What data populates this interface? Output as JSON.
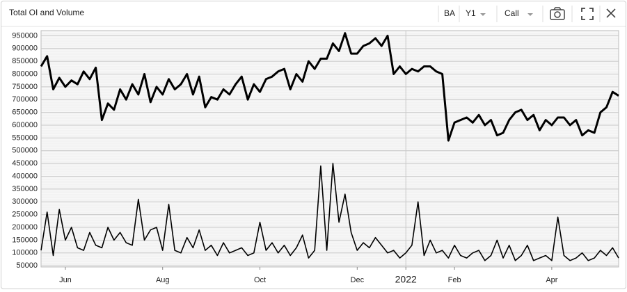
{
  "toolbar": {
    "symbol": "BA",
    "period": "Y1",
    "option_type": "Call"
  },
  "chart_data": {
    "type": "line",
    "title": "Total OI and Volume",
    "categories": [
      null,
      null,
      null,
      null,
      "Jun",
      null,
      null,
      null,
      null,
      null,
      null,
      null,
      null,
      null,
      null,
      null,
      null,
      null,
      null,
      null,
      "Aug",
      null,
      null,
      null,
      null,
      null,
      null,
      null,
      null,
      null,
      null,
      null,
      null,
      null,
      null,
      null,
      "Oct",
      null,
      null,
      null,
      null,
      null,
      null,
      null,
      null,
      null,
      null,
      null,
      null,
      null,
      null,
      null,
      "Dec",
      null,
      null,
      null,
      null,
      null,
      null,
      null,
      "2022",
      null,
      null,
      null,
      null,
      null,
      null,
      null,
      "Feb",
      null,
      null,
      null,
      null,
      null,
      null,
      null,
      null,
      null,
      null,
      null,
      null,
      null,
      null,
      null,
      "Apr",
      null,
      null,
      null,
      null,
      null,
      null,
      null,
      null,
      null,
      null,
      null
    ],
    "series": [
      {
        "color": "#000000",
        "values": [
          830000,
          870000,
          740000,
          785000,
          750000,
          775000,
          760000,
          810000,
          780000,
          825000,
          620000,
          685000,
          660000,
          740000,
          700000,
          760000,
          720000,
          800000,
          690000,
          750000,
          720000,
          780000,
          740000,
          760000,
          800000,
          720000,
          790000,
          670000,
          710000,
          700000,
          740000,
          720000,
          760000,
          790000,
          700000,
          760000,
          730000,
          780000,
          790000,
          810000,
          820000,
          740000,
          800000,
          770000,
          850000,
          820000,
          860000,
          860000,
          920000,
          890000,
          960000,
          880000,
          880000,
          910000,
          920000,
          940000,
          910000,
          950000,
          800000,
          830000,
          800000,
          820000,
          810000,
          830000,
          830000,
          810000,
          800000,
          540000,
          610000,
          620000,
          630000,
          610000,
          640000,
          600000,
          620000,
          560000,
          570000,
          620000,
          650000,
          660000,
          620000,
          640000,
          580000,
          620000,
          600000,
          630000,
          630000,
          600000,
          620000,
          560000,
          580000,
          570000,
          650000,
          670000,
          730000,
          715000
        ]
      },
      {
        "color": "#000000",
        "values": [
          110000,
          260000,
          90000,
          270000,
          150000,
          200000,
          120000,
          110000,
          180000,
          130000,
          120000,
          200000,
          150000,
          180000,
          140000,
          130000,
          310000,
          150000,
          190000,
          200000,
          110000,
          290000,
          110000,
          100000,
          160000,
          120000,
          190000,
          110000,
          130000,
          90000,
          140000,
          100000,
          110000,
          120000,
          90000,
          100000,
          220000,
          110000,
          140000,
          100000,
          130000,
          90000,
          120000,
          170000,
          80000,
          110000,
          440000,
          110000,
          450000,
          220000,
          330000,
          180000,
          110000,
          140000,
          120000,
          160000,
          130000,
          100000,
          110000,
          80000,
          100000,
          130000,
          300000,
          90000,
          150000,
          100000,
          110000,
          80000,
          130000,
          90000,
          80000,
          100000,
          110000,
          70000,
          90000,
          150000,
          80000,
          130000,
          70000,
          90000,
          130000,
          70000,
          80000,
          90000,
          70000,
          240000,
          90000,
          70000,
          80000,
          100000,
          70000,
          80000,
          110000,
          90000,
          120000,
          80000
        ]
      }
    ],
    "ylim": [
      45000,
      970000
    ],
    "yticks": [
      50000,
      100000,
      150000,
      200000,
      250000,
      300000,
      350000,
      400000,
      450000,
      500000,
      550000,
      600000,
      650000,
      700000,
      750000,
      800000,
      850000,
      900000,
      950000
    ],
    "grid": true
  }
}
